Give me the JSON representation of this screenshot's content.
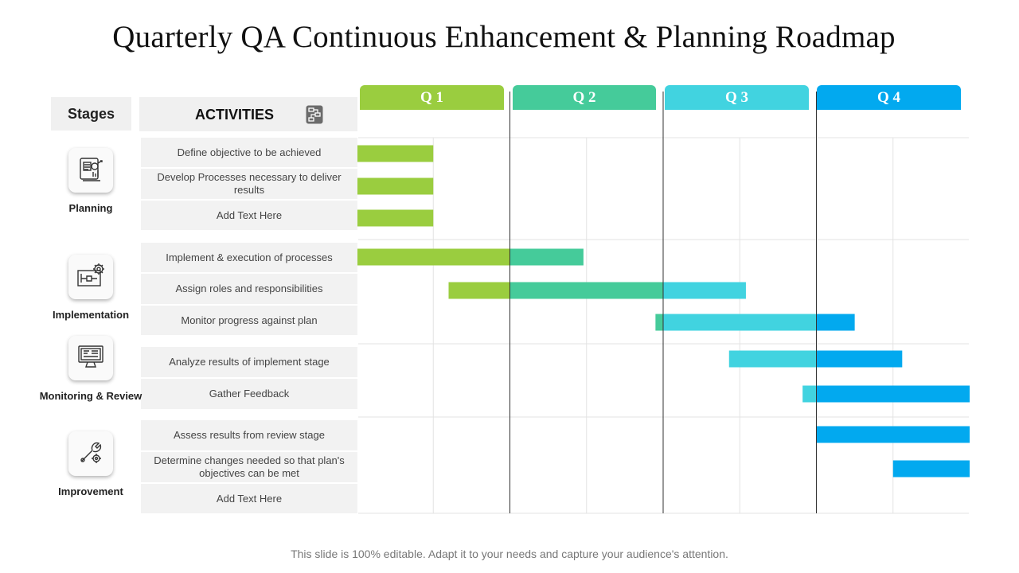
{
  "title": "Quarterly QA Continuous Enhancement & Planning Roadmap",
  "headers": {
    "stages": "Stages",
    "activities": "ACTIVITIES"
  },
  "quarters": [
    {
      "label": "Q 1",
      "color": "#9acd3f"
    },
    {
      "label": "Q 2",
      "color": "#45cb9a"
    },
    {
      "label": "Q 3",
      "color": "#41d3e0"
    },
    {
      "label": "Q 4",
      "color": "#02a9ef"
    }
  ],
  "stages": [
    {
      "label": "Planning",
      "icon": "clipboard-report-icon"
    },
    {
      "label": "Implementation",
      "icon": "gear-blueprint-icon"
    },
    {
      "label": "Monitoring & Review",
      "icon": "monitor-icon"
    },
    {
      "label": "Improvement",
      "icon": "wrench-gear-icon"
    }
  ],
  "activities": [
    "Define objective to be achieved",
    "Develop Processes necessary to deliver results",
    "Add Text Here",
    "Implement & execution of processes",
    "Assign roles and responsibilities",
    "Monitor progress against plan",
    "Analyze results of implement stage",
    "Gather Feedback",
    "Assess results from review stage",
    "Determine changes needed so that plan's objectives can be met",
    "Add Text Here"
  ],
  "chart_data": {
    "type": "gantt",
    "unit": "quarter",
    "range": [
      0,
      4
    ],
    "tasks": [
      {
        "activity": "Define objective to be achieved",
        "segments": [
          {
            "quarter": "Q 1",
            "start": 0.0,
            "end": 0.5
          }
        ]
      },
      {
        "activity": "Develop Processes necessary to deliver results",
        "segments": [
          {
            "quarter": "Q 1",
            "start": 0.0,
            "end": 0.5
          }
        ]
      },
      {
        "activity": "Add Text Here",
        "segments": [
          {
            "quarter": "Q 1",
            "start": 0.0,
            "end": 0.5
          }
        ]
      },
      {
        "activity": "Implement & execution of processes",
        "segments": [
          {
            "quarter": "Q 1",
            "start": 0.0,
            "end": 1.0
          },
          {
            "quarter": "Q 2",
            "start": 1.0,
            "end": 1.48
          }
        ]
      },
      {
        "activity": "Assign roles and responsibilities",
        "segments": [
          {
            "quarter": "Q 1",
            "start": 0.6,
            "end": 1.0
          },
          {
            "quarter": "Q 2",
            "start": 1.0,
            "end": 2.0
          },
          {
            "quarter": "Q 3",
            "start": 2.0,
            "end": 2.54
          }
        ]
      },
      {
        "activity": "Monitor progress against plan",
        "segments": [
          {
            "quarter": "Q 2",
            "start": 1.95,
            "end": 2.0
          },
          {
            "quarter": "Q 3",
            "start": 2.0,
            "end": 3.0
          },
          {
            "quarter": "Q 4",
            "start": 3.0,
            "end": 3.25
          }
        ]
      },
      {
        "activity": "Analyze results of implement stage",
        "segments": [
          {
            "quarter": "Q 3",
            "start": 2.43,
            "end": 3.0
          },
          {
            "quarter": "Q 4",
            "start": 3.0,
            "end": 3.56
          }
        ]
      },
      {
        "activity": "Gather Feedback",
        "segments": [
          {
            "quarter": "Q 3",
            "start": 2.91,
            "end": 3.0
          },
          {
            "quarter": "Q 4",
            "start": 3.0,
            "end": 4.0
          }
        ]
      },
      {
        "activity": "Assess results from review stage",
        "segments": [
          {
            "quarter": "Q 4",
            "start": 3.0,
            "end": 4.0
          }
        ]
      },
      {
        "activity": "Determine changes needed so that plan's objectives can be met",
        "segments": [
          {
            "quarter": "Q 4",
            "start": 3.5,
            "end": 4.0
          }
        ]
      },
      {
        "activity": "Add Text Here",
        "segments": []
      }
    ]
  },
  "footer": "This slide is 100% editable. Adapt it to your needs and capture your audience's attention."
}
